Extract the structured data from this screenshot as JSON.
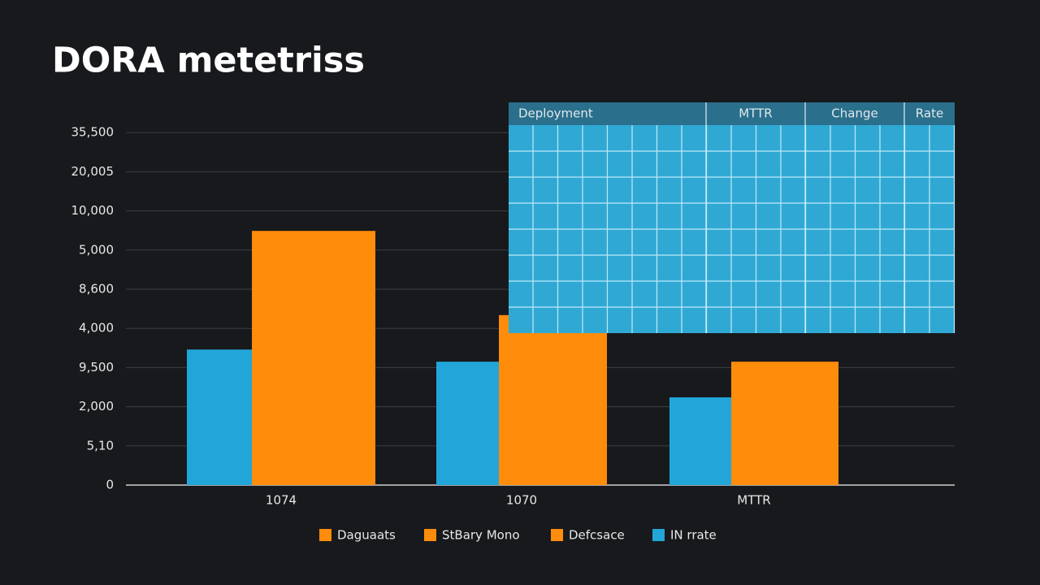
{
  "chart_data": {
    "type": "bar",
    "title": "DORA metetriss",
    "categories": [
      "1074",
      "1070",
      "MTTR"
    ],
    "y_labels": [
      "0",
      "5,10",
      "2,000",
      "9,500",
      "4,000",
      "8,600",
      "5,000",
      "10,000",
      "20,005",
      "35,500"
    ],
    "series": [
      {
        "color": "#22a6d9",
        "values": [
          3.46,
          3.15,
          2.24
        ]
      },
      {
        "color": "#ff8c0a",
        "values": [
          6.49,
          4.34,
          3.15
        ]
      }
    ],
    "legend": [
      {
        "name": "Daguaats",
        "color": "#ff8c0a"
      },
      {
        "name": "StBary Mono",
        "color": "#ff8c0a"
      },
      {
        "name": "Defcsace",
        "color": "#ff8c0a"
      },
      {
        "name": "IN rrate",
        "color": "#22a6d9"
      }
    ],
    "grid": true
  },
  "table": {
    "headers": [
      "Deployment",
      "MTTR",
      "Change",
      "Rate"
    ]
  }
}
